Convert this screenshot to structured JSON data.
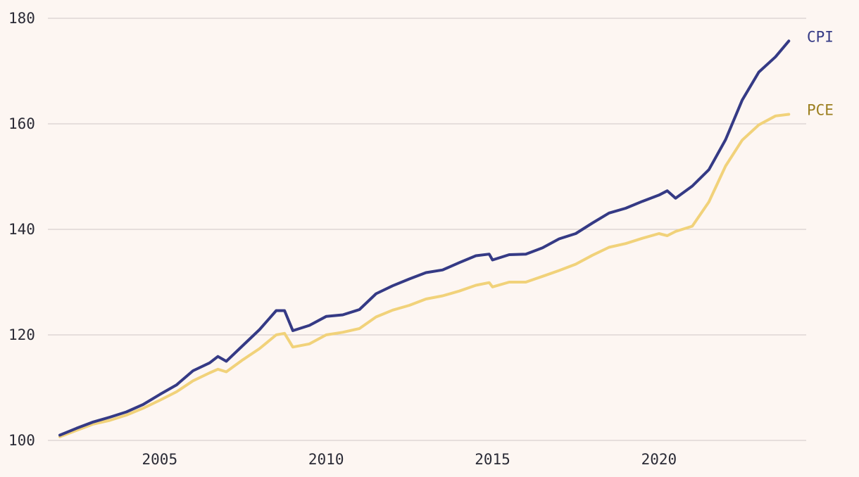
{
  "chart_data": {
    "type": "line",
    "title": "",
    "xlabel": "",
    "ylabel": "",
    "xlim": [
      2002.0,
      2024.0
    ],
    "ylim": [
      100,
      180
    ],
    "grid": true,
    "legend": "direct labels at right end of lines",
    "y_ticks": [
      {
        "value": 100,
        "label": "100"
      },
      {
        "value": 120,
        "label": "120"
      },
      {
        "value": 140,
        "label": "140"
      },
      {
        "value": 160,
        "label": "160"
      },
      {
        "value": 180,
        "label": "180"
      }
    ],
    "x_ticks": [
      {
        "value": 2005,
        "label": "2005"
      },
      {
        "value": 2010,
        "label": "2010"
      },
      {
        "value": 2015,
        "label": "2015"
      },
      {
        "value": 2020,
        "label": "2020"
      }
    ],
    "x": [
      2002.0,
      2002.5,
      2003.0,
      2003.5,
      2004.0,
      2004.5,
      2005.0,
      2005.5,
      2006.0,
      2006.5,
      2006.75,
      2007.0,
      2007.5,
      2008.0,
      2008.5,
      2008.75,
      2009.0,
      2009.5,
      2010.0,
      2010.5,
      2011.0,
      2011.5,
      2012.0,
      2012.5,
      2013.0,
      2013.5,
      2014.0,
      2014.5,
      2014.9,
      2015.0,
      2015.5,
      2016.0,
      2016.5,
      2017.0,
      2017.5,
      2018.0,
      2018.5,
      2019.0,
      2019.5,
      2020.0,
      2020.25,
      2020.5,
      2021.0,
      2021.5,
      2022.0,
      2022.5,
      2023.0,
      2023.5,
      2023.9
    ],
    "series": [
      {
        "name": "CPI",
        "color": "#353a85",
        "values": [
          101.0,
          102.3,
          103.5,
          104.4,
          105.4,
          106.8,
          108.7,
          110.5,
          113.2,
          114.7,
          115.9,
          115.0,
          118.0,
          121.0,
          124.6,
          124.6,
          120.8,
          121.8,
          123.5,
          123.8,
          124.8,
          127.8,
          129.3,
          130.6,
          131.8,
          132.3,
          133.7,
          135.0,
          135.3,
          134.2,
          135.2,
          135.3,
          136.5,
          138.2,
          139.2,
          141.2,
          143.1,
          144.0,
          145.3,
          146.5,
          147.3,
          145.9,
          148.2,
          151.3,
          157.0,
          164.5,
          169.8,
          172.7,
          175.7
        ]
      },
      {
        "name": "PCE",
        "color": "#f1d27a",
        "values": [
          100.7,
          101.9,
          103.1,
          103.8,
          104.8,
          106.1,
          107.6,
          109.2,
          111.3,
          112.8,
          113.5,
          113.0,
          115.3,
          117.4,
          120.0,
          120.3,
          117.7,
          118.3,
          120.0,
          120.5,
          121.2,
          123.4,
          124.7,
          125.6,
          126.8,
          127.4,
          128.3,
          129.4,
          129.9,
          129.1,
          130.0,
          130.0,
          131.1,
          132.2,
          133.4,
          135.1,
          136.6,
          137.3,
          138.3,
          139.2,
          138.8,
          139.6,
          140.6,
          145.2,
          152.0,
          156.9,
          159.8,
          161.5,
          161.8
        ]
      }
    ]
  }
}
